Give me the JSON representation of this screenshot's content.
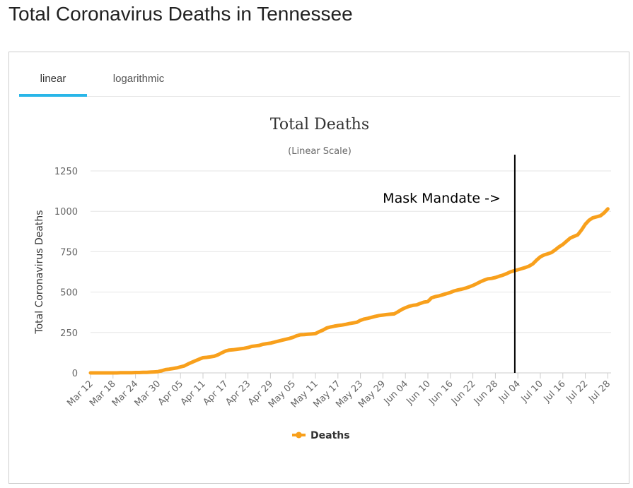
{
  "page": {
    "title": "Total Coronavirus Deaths in Tennessee"
  },
  "tabs": [
    {
      "label": "linear",
      "active": true
    },
    {
      "label": "logarithmic",
      "active": false
    }
  ],
  "colors": {
    "series": "#f8a01c",
    "tab_active": "#29b6e8",
    "grid": "#e6e6e6",
    "annotation_line": "#000000"
  },
  "chart_data": {
    "type": "line",
    "title": "Total Deaths",
    "subtitle": "(Linear Scale)",
    "xlabel": "",
    "ylabel": "Total Coronavirus Deaths",
    "ylim": [
      0,
      1300
    ],
    "yticks": [
      0,
      250,
      500,
      750,
      1000,
      1250
    ],
    "ytick_labels": [
      "0",
      "250",
      "500",
      "750",
      "1000",
      "1250"
    ],
    "x_start": "Mar 12",
    "xtick_labels": [
      "Mar 12",
      "Mar 18",
      "Mar 24",
      "Mar 30",
      "Apr 05",
      "Apr 11",
      "Apr 17",
      "Apr 23",
      "Apr 29",
      "May 05",
      "May 11",
      "May 17",
      "May 23",
      "May 29",
      "Jun 04",
      "Jun 10",
      "Jun 16",
      "Jun 22",
      "Jun 28",
      "Jul 04",
      "Jul 10",
      "Jul 16",
      "Jul 22",
      "Jul 28"
    ],
    "xtick_day_index": [
      0,
      6,
      12,
      18,
      24,
      30,
      36,
      42,
      48,
      54,
      60,
      66,
      72,
      78,
      84,
      90,
      96,
      102,
      108,
      114,
      120,
      126,
      132,
      138
    ],
    "grid": true,
    "legend_position": "bottom-center",
    "series": [
      {
        "name": "Deaths",
        "values": [
          0,
          0,
          0,
          0,
          0,
          0,
          0,
          0,
          1,
          1,
          1,
          1,
          2,
          2,
          3,
          3,
          5,
          6,
          8,
          13,
          20,
          23,
          27,
          31,
          37,
          43,
          55,
          65,
          75,
          85,
          94,
          96,
          99,
          103,
          112,
          124,
          135,
          141,
          143,
          146,
          149,
          152,
          157,
          164,
          167,
          170,
          177,
          181,
          184,
          190,
          196,
          202,
          207,
          213,
          220,
          230,
          236,
          237,
          239,
          241,
          243,
          255,
          265,
          278,
          284,
          289,
          293,
          296,
          300,
          305,
          309,
          313,
          325,
          333,
          338,
          344,
          350,
          355,
          358,
          361,
          363,
          365,
          378,
          392,
          403,
          412,
          418,
          421,
          430,
          438,
          442,
          465,
          472,
          477,
          484,
          491,
          498,
          507,
          513,
          518,
          524,
          532,
          541,
          552,
          564,
          574,
          582,
          585,
          590,
          598,
          605,
          614,
          625,
          632,
          638,
          645,
          652,
          661,
          675,
          698,
          718,
          730,
          737,
          745,
          762,
          780,
          795,
          815,
          835,
          845,
          855,
          885,
          920,
          945,
          960,
          966,
          972,
          990,
          1015
        ]
      }
    ],
    "annotation": {
      "label": "Mask Mandate ->",
      "day_index": 113
    }
  }
}
